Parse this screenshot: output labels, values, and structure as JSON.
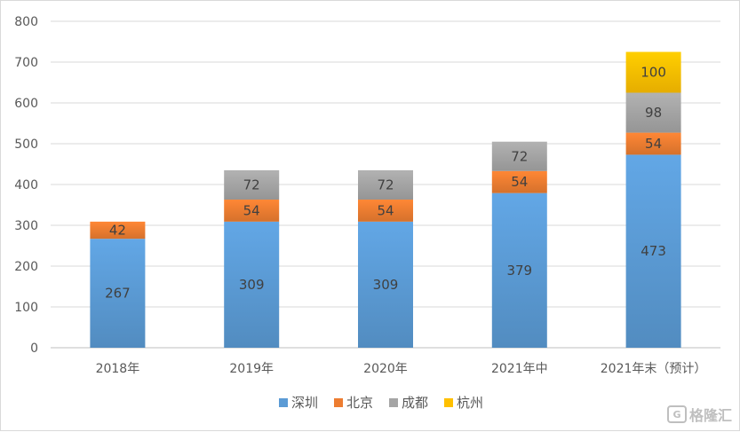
{
  "chart_data": {
    "type": "bar",
    "stacked": true,
    "categories": [
      "2018年",
      "2019年",
      "2020年",
      "2021年中",
      "2021年末（预计）"
    ],
    "series": [
      {
        "name": "深圳",
        "color": "#5b9bd5",
        "values": [
          267,
          309,
          309,
          379,
          473
        ]
      },
      {
        "name": "北京",
        "color": "#ed7d31",
        "values": [
          42,
          54,
          54,
          54,
          54
        ]
      },
      {
        "name": "成都",
        "color": "#a5a5a5",
        "values": [
          null,
          72,
          72,
          72,
          98
        ]
      },
      {
        "name": "杭州",
        "color": "#ffc000",
        "values": [
          null,
          null,
          null,
          null,
          100
        ]
      }
    ],
    "ylim": [
      0,
      800
    ],
    "yticks": [
      0,
      100,
      200,
      300,
      400,
      500,
      600,
      700,
      800
    ],
    "grid": true,
    "legend": "bottom",
    "data_labels": true
  },
  "watermark": {
    "text": "格隆汇",
    "logo_icon": "g-logo-icon"
  }
}
